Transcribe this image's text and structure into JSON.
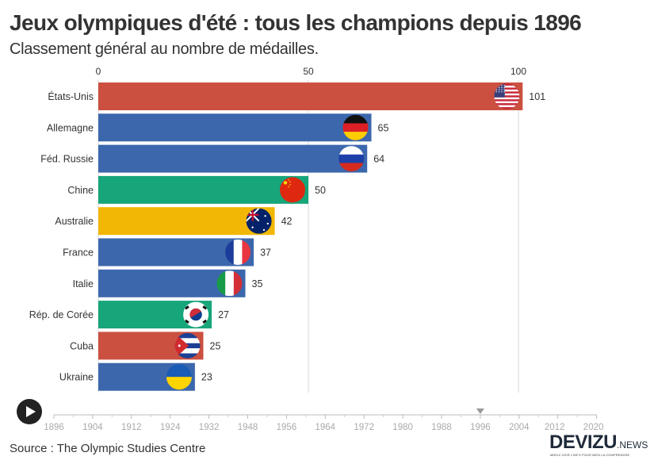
{
  "header": {
    "title": "Jeux olympiques d'été : tous les champions depuis 1896",
    "subtitle": "Classement général au nombre de médailles."
  },
  "chart_data": {
    "type": "bar",
    "orientation": "horizontal",
    "title": "Jeux olympiques d'été : tous les champions depuis 1896",
    "subtitle": "Classement général au nombre de médailles.",
    "xlabel": "",
    "ylabel": "",
    "xlim": [
      0,
      101
    ],
    "x_ticks": [
      0,
      50,
      100
    ],
    "grid": true,
    "axis_position": "top",
    "categories": [
      "États-Unis",
      "Allemagne",
      "Féd. Russie",
      "Chine",
      "Australie",
      "France",
      "Italie",
      "Rép. de Corée",
      "Cuba",
      "Ukraine"
    ],
    "values": [
      101,
      65,
      64,
      50,
      42,
      37,
      35,
      27,
      25,
      23
    ],
    "bar_colors": [
      "#CB5040",
      "#3C67AC",
      "#3C67AC",
      "#17A57A",
      "#F2B705",
      "#3C67AC",
      "#3C67AC",
      "#17A57A",
      "#CB5040",
      "#3C67AC"
    ],
    "flags": [
      "usa-flag",
      "germany-flag",
      "russia-flag",
      "china-flag",
      "australia-flag",
      "france-flag",
      "italy-flag",
      "korea-flag",
      "cuba-flag",
      "ukraine-flag"
    ],
    "data_labels": [
      "101",
      "65",
      "64",
      "50",
      "42",
      "37",
      "35",
      "27",
      "25",
      "23"
    ]
  },
  "timeline": {
    "play_icon": "play-icon",
    "years": [
      "1896",
      "1904",
      "1912",
      "1924",
      "1932",
      "1948",
      "1956",
      "1964",
      "1972",
      "1980",
      "1988",
      "1996",
      "2004",
      "2012",
      "2020"
    ],
    "current_year": "1996",
    "current_index": 11
  },
  "footer": {
    "source": "Source : The Olympic Studies Centre",
    "logo_main": "DEVIZU",
    "logo_suffix": ".NEWS",
    "logo_tagline": "MIEUX VOIR L'INFO POUR BIEN LA COMPRENDRE"
  }
}
